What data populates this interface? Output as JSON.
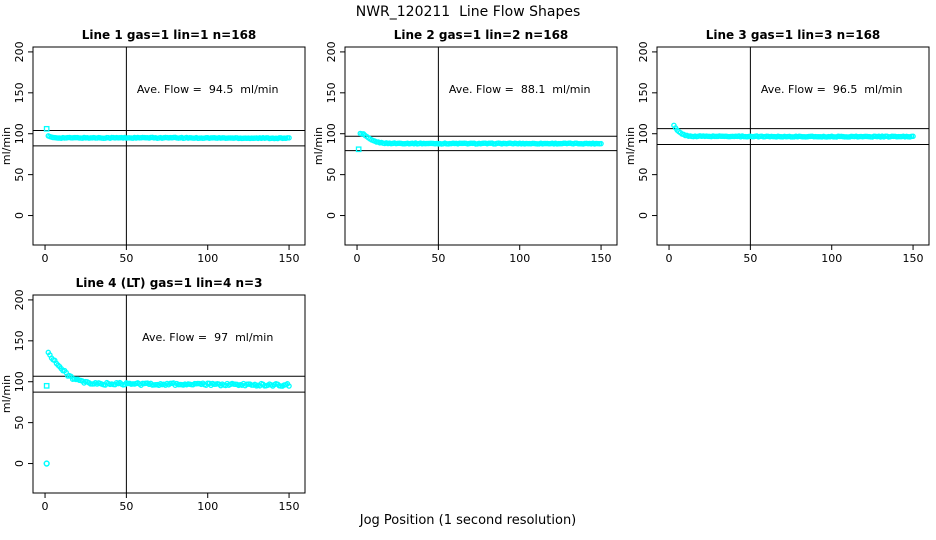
{
  "main_title": "NWR_120211  Line Flow Shapes",
  "x_axis_label": "Jog Position (1 second resolution)",
  "colors": {
    "marker": "#00ffff",
    "axis": "#000000",
    "background": "#ffffff"
  },
  "chart_data": {
    "type": "scatter",
    "layout": {
      "rows": 2,
      "cols": 3,
      "grid_positions": [
        [
          0,
          0
        ],
        [
          0,
          1
        ],
        [
          0,
          2
        ],
        [
          1,
          0
        ]
      ],
      "legend": "none",
      "grid": "off"
    },
    "shared": {
      "ylabel": "ml/min",
      "xticks": [
        0,
        50,
        100,
        150
      ],
      "yticks": [
        0,
        50,
        100,
        150,
        200
      ],
      "xlim_draw": [
        -7.4,
        159.8
      ],
      "ylim_draw": [
        -36,
        206
      ],
      "vline_x": 50,
      "marker": "open-circle"
    },
    "subplots": [
      {
        "title": "Line 1 gas=1 lin=1 n=168",
        "annotation": "Ave. Flow =  94.5  ml/min",
        "ave_flow_ml_min": 94.5,
        "n": 168,
        "hlines": [
          104.0,
          85.1
        ],
        "series": {
          "x_start": 2,
          "x_end": 150,
          "noise": 0.5,
          "profile": [
            [
              2,
              97
            ],
            [
              4,
              95.5
            ],
            [
              8,
              95
            ],
            [
              80,
              95
            ],
            [
              150,
              94.5
            ]
          ]
        },
        "outliers": [
          {
            "x": 1,
            "y": 106,
            "shape": "square"
          }
        ]
      },
      {
        "title": "Line 2 gas=1 lin=2 n=168",
        "annotation": "Ave. Flow =  88.1  ml/min",
        "ave_flow_ml_min": 88.1,
        "n": 168,
        "hlines": [
          96.9,
          79.3
        ],
        "series": {
          "x_start": 2,
          "x_end": 150,
          "noise": 0.5,
          "profile": [
            [
              2,
              100
            ],
            [
              4,
              99.5
            ],
            [
              6,
              96
            ],
            [
              9,
              92
            ],
            [
              13,
              89.5
            ],
            [
              18,
              88.3
            ],
            [
              50,
              88
            ],
            [
              150,
              88
            ]
          ]
        },
        "outliers": [
          {
            "x": 1,
            "y": 81,
            "shape": "square"
          }
        ]
      },
      {
        "title": "Line 3 gas=1 lin=3 n=168",
        "annotation": "Ave. Flow =  96.5  ml/min",
        "ave_flow_ml_min": 96.5,
        "n": 168,
        "hlines": [
          106.2,
          86.9
        ],
        "series": {
          "x_start": 3,
          "x_end": 150,
          "noise": 0.5,
          "profile": [
            [
              3,
              110
            ],
            [
              5,
              104
            ],
            [
              8,
              99.5
            ],
            [
              12,
              97
            ],
            [
              80,
              96.5
            ],
            [
              150,
              96.5
            ]
          ]
        },
        "outliers": []
      },
      {
        "title": "Line 4 (LT) gas=1 lin=4 n=3",
        "annotation": "Ave. Flow =  97  ml/min",
        "ave_flow_ml_min": 97,
        "n": 3,
        "hlines": [
          106.7,
          87.3
        ],
        "series": {
          "x_start": 2,
          "x_end": 150,
          "noise": 1.6,
          "profile": [
            [
              2,
              135
            ],
            [
              5,
              128
            ],
            [
              9,
              118
            ],
            [
              13,
              110
            ],
            [
              18,
              103
            ],
            [
              24,
              99
            ],
            [
              30,
              97.5
            ],
            [
              80,
              97
            ],
            [
              150,
              96
            ]
          ]
        },
        "outliers": [
          {
            "x": 1,
            "y": 95,
            "shape": "square"
          },
          {
            "x": 1,
            "y": 0,
            "shape": "circle"
          }
        ]
      }
    ]
  }
}
